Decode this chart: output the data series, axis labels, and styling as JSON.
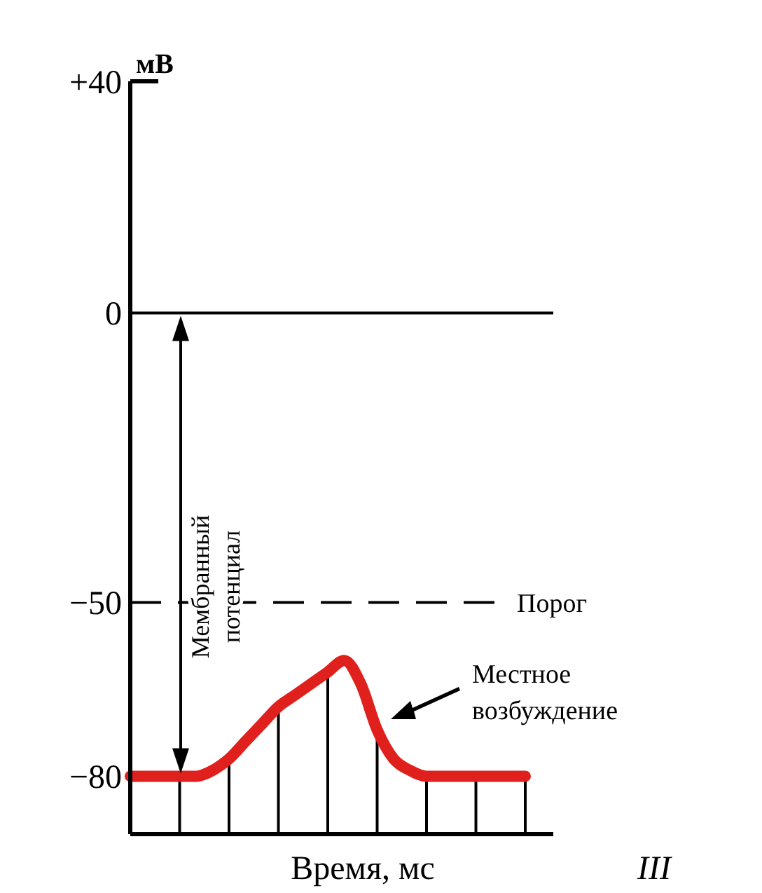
{
  "chart_data": {
    "type": "line",
    "xlabel": "Время, мс",
    "ylabel": "мВ",
    "categories": [
      null,
      null,
      null,
      null,
      null,
      null,
      null,
      null,
      null,
      null,
      null,
      null,
      null,
      null,
      null,
      null,
      null,
      null,
      null,
      null,
      null,
      null,
      null,
      null,
      null
    ],
    "series": [
      {
        "color": "#e0201c",
        "values": [
          -80,
          -80,
          -80,
          -80,
          -80,
          -79,
          -77,
          -74,
          -71,
          -68,
          -66,
          -64,
          -62,
          -60,
          -64,
          -72,
          -77,
          -79,
          -80,
          -80,
          -80,
          -80,
          -80,
          -80,
          -80
        ]
      }
    ],
    "ylim": [
      -90,
      40
    ],
    "yticks": [
      {
        "value": 40,
        "label": "+40"
      },
      0,
      {
        "value": -50,
        "label": "−50"
      },
      {
        "value": -80,
        "label": "−80"
      }
    ],
    "ref_lines": [
      {
        "axis": "y",
        "value": 0,
        "line_style": "solid",
        "color": "#000000"
      },
      {
        "axis": "y",
        "value": -50,
        "label": "Порог",
        "line_style": "dashed",
        "color": "#000000"
      }
    ],
    "annotations": [
      "Мембранный потенциал",
      "Местное возбуждение",
      "III"
    ],
    "grid": false,
    "marker": "none",
    "line_style": "solid"
  }
}
